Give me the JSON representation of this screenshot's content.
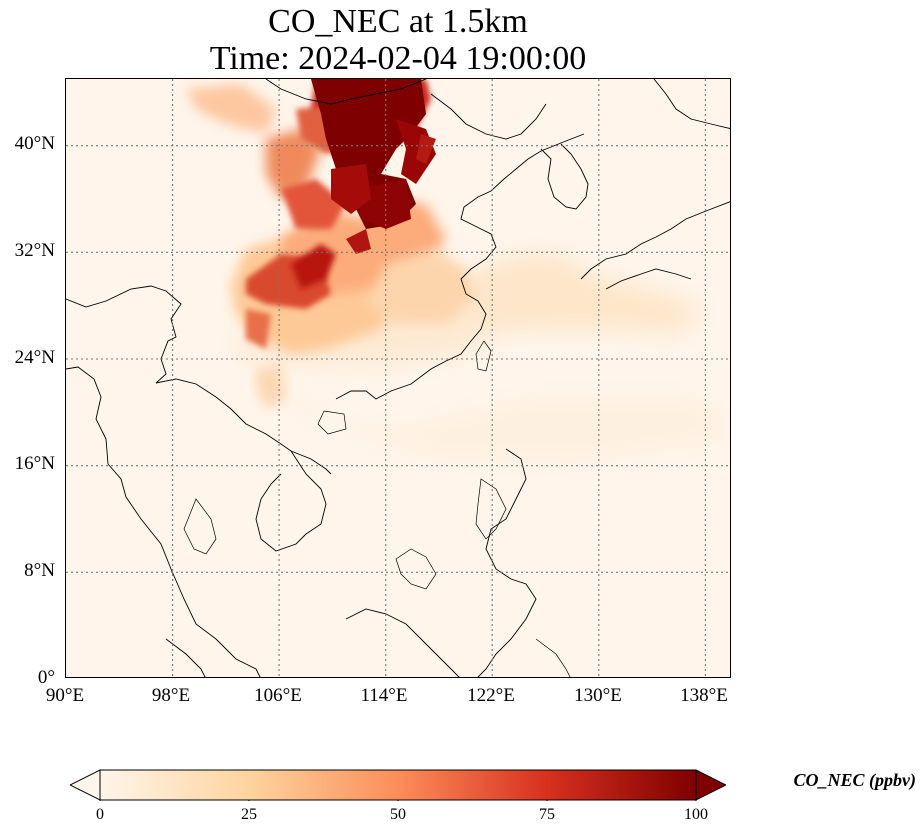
{
  "title_line1": "CO_NEC at 1.5km",
  "title_line2": "Time: 2024-02-04 19:00:00",
  "map": {
    "lon_range": [
      90,
      140
    ],
    "lat_range": [
      0,
      45
    ],
    "lat_ticks": [
      {
        "value": 40,
        "label": "40°N"
      },
      {
        "value": 32,
        "label": "32°N"
      },
      {
        "value": 24,
        "label": "24°N"
      },
      {
        "value": 16,
        "label": "16°N"
      },
      {
        "value": 8,
        "label": "8°N"
      },
      {
        "value": 0,
        "label": "0°"
      }
    ],
    "lon_ticks": [
      {
        "value": 90,
        "label": "90°E"
      },
      {
        "value": 98,
        "label": "98°E"
      },
      {
        "value": 106,
        "label": "106°E"
      },
      {
        "value": 114,
        "label": "114°E"
      },
      {
        "value": 122,
        "label": "122°E"
      },
      {
        "value": 130,
        "label": "130°E"
      },
      {
        "value": 138,
        "label": "138°E"
      }
    ],
    "gridlines": "dotted"
  },
  "colorbar": {
    "label": "CO_NEC (ppbv)",
    "min": 0,
    "max": 100,
    "extend": "both",
    "colormap": "OrRd",
    "ticks": [
      "0",
      "25",
      "50",
      "75",
      "100"
    ],
    "colors": [
      "#fff5eb",
      "#fdd49e",
      "#fc8d59",
      "#d7301f",
      "#7f0000"
    ]
  }
}
